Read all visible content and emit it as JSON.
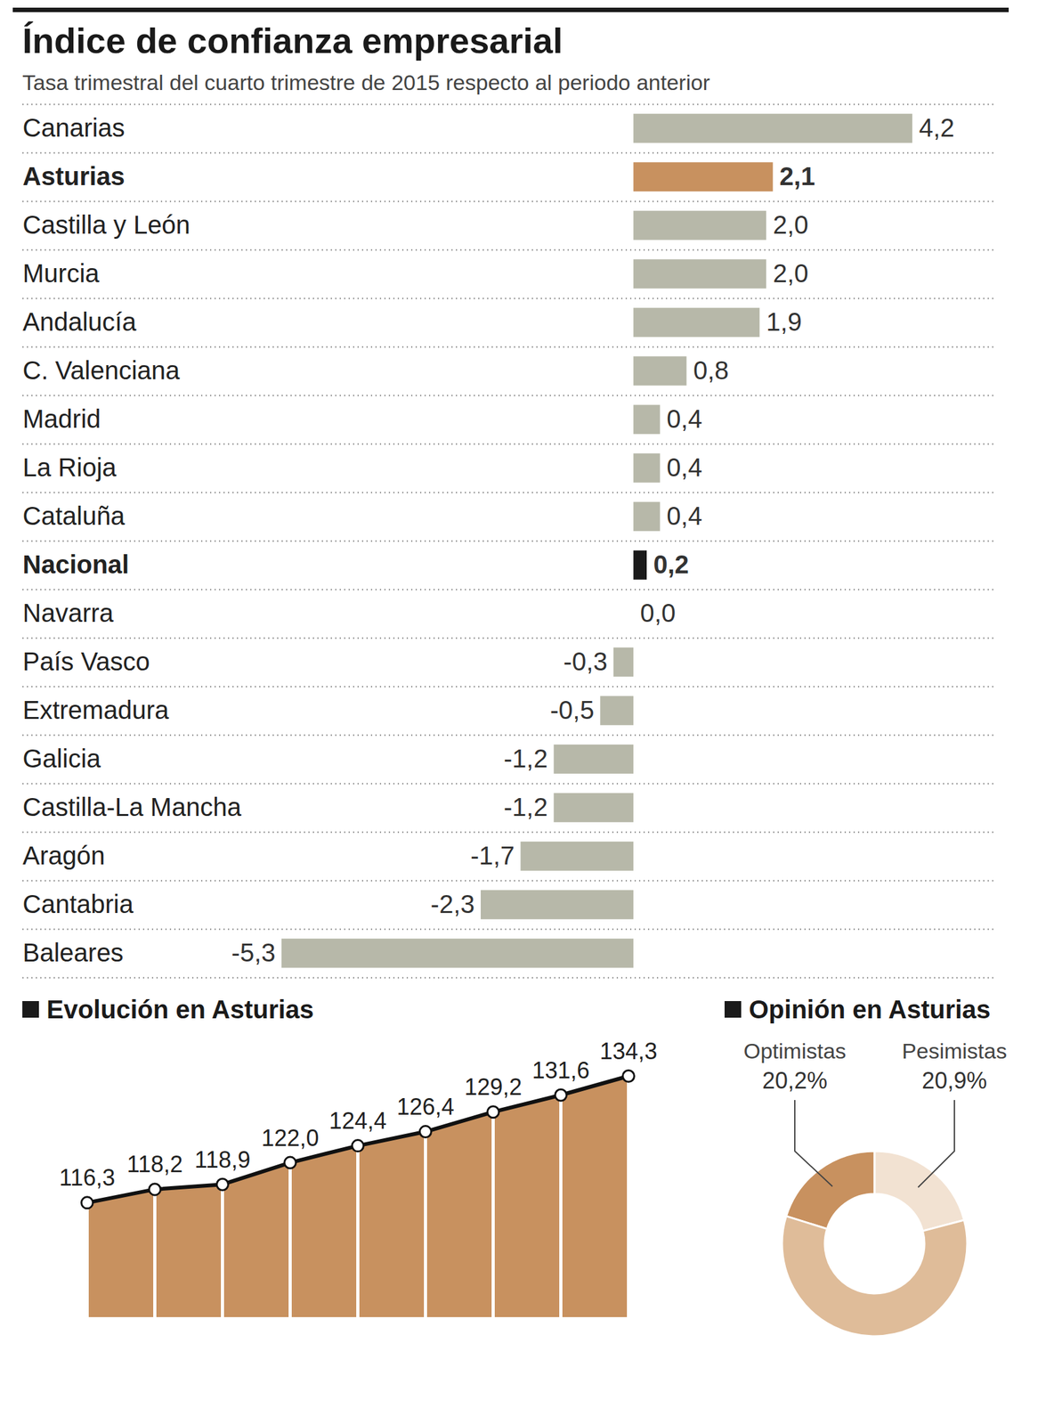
{
  "chart_data": [
    {
      "type": "bar",
      "title": "Índice de confianza empresarial",
      "subtitle": "Tasa trimestral del cuarto trimestre de 2015 respecto al periodo anterior",
      "orientation": "horizontal",
      "categories": [
        "Canarias",
        "Asturias",
        "Castilla y León",
        "Murcia",
        "Andalucía",
        "C. Valenciana",
        "Madrid",
        "La Rioja",
        "Cataluña",
        "Nacional",
        "Navarra",
        "País Vasco",
        "Extremadura",
        "Galicia",
        "Castilla-La Mancha",
        "Aragón",
        "Cantabria",
        "Baleares"
      ],
      "values": [
        4.2,
        2.1,
        2.0,
        2.0,
        1.9,
        0.8,
        0.4,
        0.4,
        0.4,
        0.2,
        0.0,
        -0.3,
        -0.5,
        -1.2,
        -1.2,
        -1.7,
        -2.3,
        -5.3
      ],
      "value_labels": [
        "4,2",
        "2,1",
        "2,0",
        "2,0",
        "1,9",
        "0,8",
        "0,4",
        "0,4",
        "0,4",
        "0,2",
        "0,0",
        "-0,3",
        "-0,5",
        "-1,2",
        "-1,2",
        "-1,7",
        "-2,3",
        "-5,3"
      ],
      "colors": [
        "#b7b8a9",
        "#c8915f",
        "#b7b8a9",
        "#b7b8a9",
        "#b7b8a9",
        "#b7b8a9",
        "#b7b8a9",
        "#b7b8a9",
        "#b7b8a9",
        "#1a1a1a",
        "#b7b8a9",
        "#b7b8a9",
        "#b7b8a9",
        "#b7b8a9",
        "#b7b8a9",
        "#b7b8a9",
        "#b7b8a9",
        "#b7b8a9"
      ],
      "xlim": [
        -5.3,
        4.2
      ],
      "data_labels": true,
      "tick_labels": "y",
      "grid": true
    },
    {
      "type": "area",
      "title": "Evolución en Asturias",
      "categories": [
        null,
        null,
        null,
        null,
        null,
        null,
        null,
        null,
        null
      ],
      "values": [
        116.3,
        118.2,
        118.9,
        122.0,
        124.4,
        126.4,
        129.2,
        131.6,
        134.3
      ],
      "value_labels": [
        "116,3",
        "118,2",
        "118,9",
        "122,0",
        "124,4",
        "126,4",
        "129,2",
        "131,6",
        "134,3"
      ],
      "color": "#c8915f",
      "ylim": [
        100,
        134.3
      ],
      "marker": "circle",
      "data_labels": true,
      "tick_labels": false
    },
    {
      "type": "donut",
      "title": "Opinión en Asturias",
      "categories": [
        "Optimistas",
        "Pesimistas",
        null
      ],
      "values": [
        20.2,
        20.9,
        58.9
      ],
      "value_labels": [
        "20,2%",
        "20,9%",
        null
      ],
      "colors": [
        "#c8915f",
        "#f2e2d2",
        "#dfbc99"
      ],
      "data_labels": true
    }
  ]
}
